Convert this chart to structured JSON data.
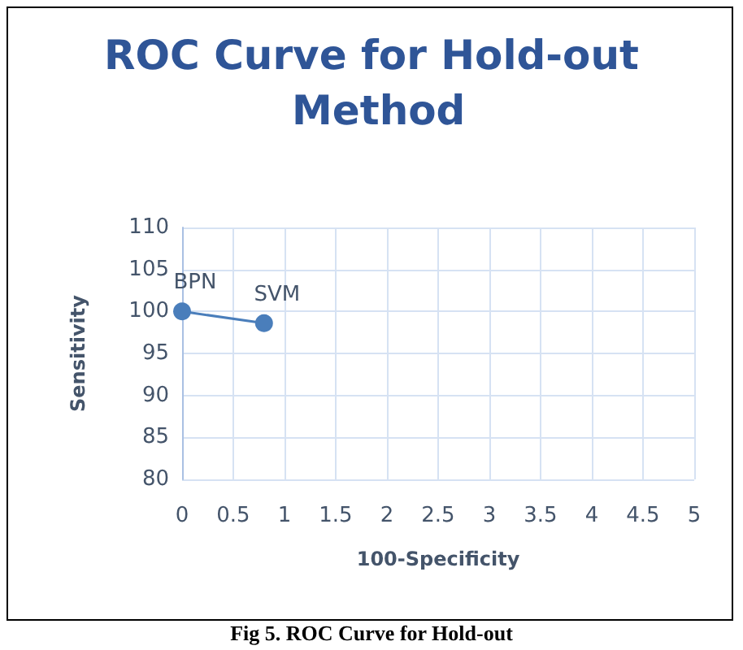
{
  "chart_data": {
    "type": "line",
    "title": "ROC Curve for Hold-out Method",
    "xlabel": "100-Specificity",
    "ylabel": "Sensitivity",
    "x": [
      0,
      0.8
    ],
    "series": [
      {
        "color": "#4a7ebb",
        "values": [
          100,
          98.6
        ]
      }
    ],
    "xlim": [
      0,
      5
    ],
    "xticks": [
      0,
      0.5,
      1,
      1.5,
      2,
      2.5,
      3,
      3.5,
      4,
      4.5,
      5
    ],
    "ylim": [
      80,
      110
    ],
    "yticks": [
      80,
      85,
      90,
      95,
      100,
      105,
      110
    ],
    "grid": true,
    "marker": "circle",
    "line_style": "solid",
    "annotations": [
      {
        "text": "BPN",
        "x": 0,
        "y": 100
      },
      {
        "text": "SVM",
        "x": 0.8,
        "y": 98.6
      },
      "Fig 5. ROC Curve for Hold-out"
    ]
  }
}
